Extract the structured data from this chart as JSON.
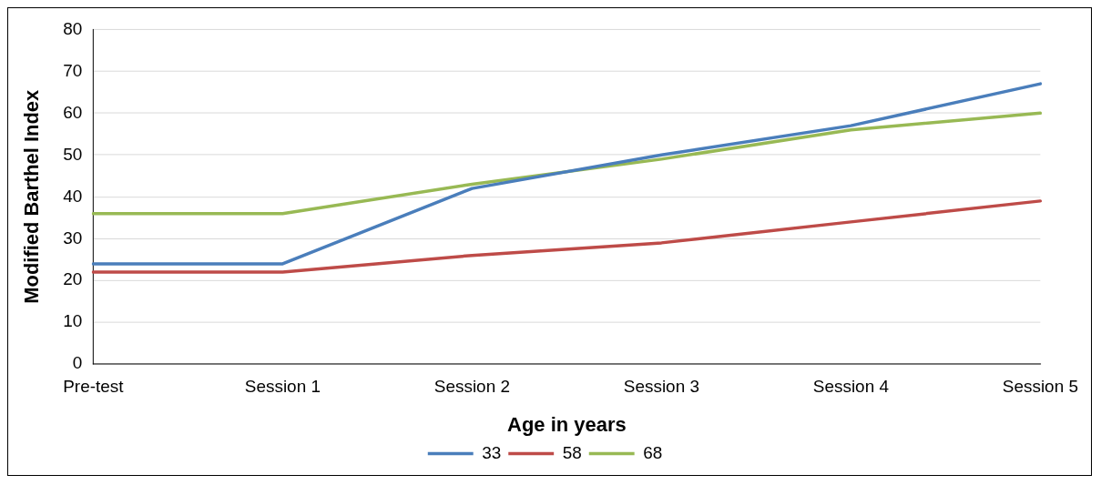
{
  "chart_data": {
    "type": "line",
    "xlabel": "Age in years",
    "ylabel": "Modified Barthel Index",
    "categories": [
      "Pre-test",
      "Session 1",
      "Session 2",
      "Session 3",
      "Session 4",
      "Session 5"
    ],
    "series": [
      {
        "name": "33",
        "color": "#4a7ebb",
        "values": [
          24,
          24,
          42,
          50,
          57,
          67
        ]
      },
      {
        "name": "58",
        "color": "#be4b48",
        "values": [
          22,
          22,
          26,
          29,
          34,
          39
        ]
      },
      {
        "name": "68",
        "color": "#98b954",
        "values": [
          36,
          36,
          43,
          49,
          56,
          60
        ]
      }
    ],
    "ylim": [
      0,
      80
    ],
    "yticks": [
      0,
      10,
      20,
      30,
      40,
      50,
      60,
      70,
      80
    ],
    "grid": "y",
    "legend": "bottom",
    "marker": "none",
    "line_style": "solid"
  }
}
